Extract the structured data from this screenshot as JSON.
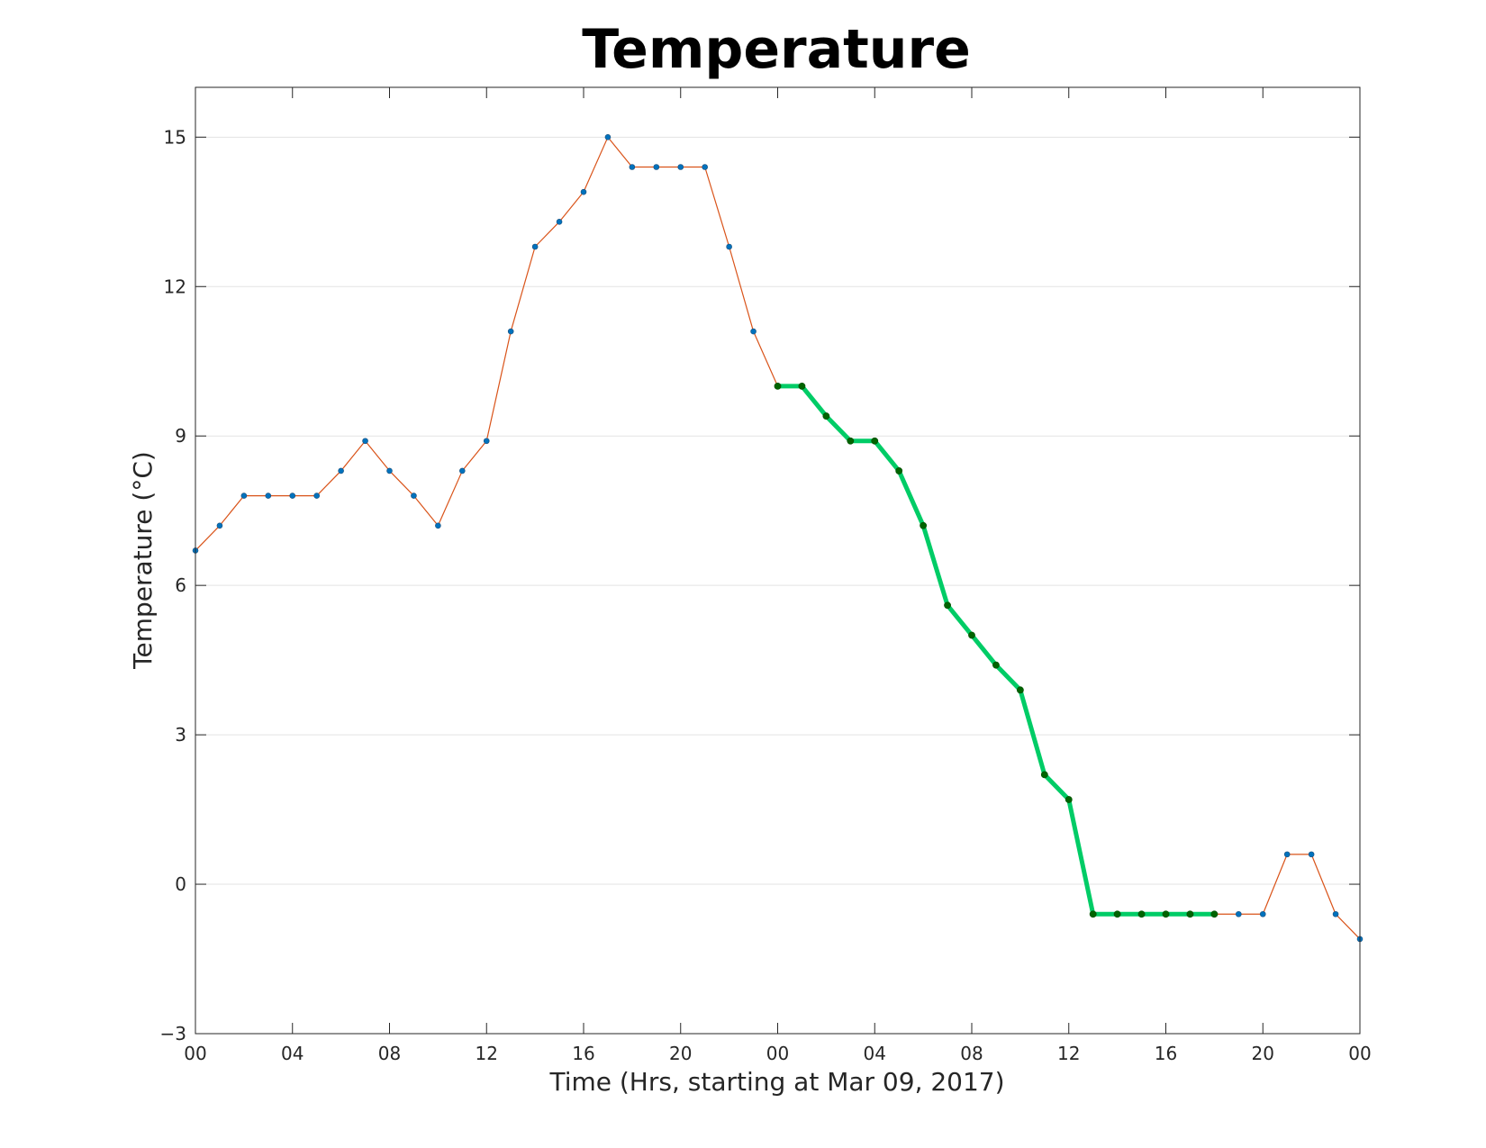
{
  "chart_data": {
    "type": "line",
    "title": "Temperature",
    "xlabel": "Time (Hrs, starting at Mar 09, 2017)",
    "ylabel": "Temperature (°C)",
    "ylim": [
      -3,
      16
    ],
    "xlim": [
      0,
      48
    ],
    "yticks": [
      -3,
      0,
      3,
      6,
      9,
      12,
      15
    ],
    "xticks": [
      0,
      4,
      8,
      12,
      16,
      20,
      24,
      28,
      32,
      36,
      40,
      44,
      48
    ],
    "xtick_labels": [
      "00",
      "04",
      "08",
      "12",
      "16",
      "20",
      "00",
      "04",
      "08",
      "12",
      "16",
      "20",
      "00"
    ],
    "grid": "horizontal",
    "series": [
      {
        "role": "full",
        "color": "#d95319",
        "marker_color": "#0072bd",
        "x": [
          0,
          1,
          2,
          3,
          4,
          5,
          6,
          7,
          8,
          9,
          10,
          11,
          12,
          13,
          14,
          15,
          16,
          17,
          18,
          19,
          20,
          21,
          22,
          23,
          24,
          25,
          26,
          27,
          28,
          29,
          30,
          31,
          32,
          33,
          34,
          35,
          36,
          37,
          38,
          39,
          40,
          41,
          42,
          43,
          44,
          45,
          46,
          47,
          48
        ],
        "y": [
          6.7,
          7.2,
          7.8,
          7.8,
          7.8,
          7.8,
          8.3,
          8.9,
          8.3,
          7.8,
          7.2,
          8.3,
          8.9,
          11.1,
          12.8,
          13.3,
          13.9,
          15.0,
          14.4,
          14.4,
          14.4,
          14.4,
          12.8,
          11.1,
          10.0,
          10.0,
          9.4,
          8.9,
          8.9,
          8.3,
          7.2,
          5.6,
          5.0,
          4.4,
          3.9,
          2.2,
          1.7,
          -0.6,
          -0.6,
          -0.6,
          -0.6,
          -0.6,
          -0.6,
          -0.6,
          -0.6,
          0.6,
          0.6,
          -0.6,
          -1.1
        ]
      },
      {
        "role": "highlight",
        "color": "#00cc66",
        "marker_color": "#006400",
        "x": [
          24,
          25,
          26,
          27,
          28,
          29,
          30,
          31,
          32,
          33,
          34,
          35,
          36,
          37,
          38,
          39,
          40,
          41,
          42
        ],
        "y": [
          10.0,
          10.0,
          9.4,
          8.9,
          8.9,
          8.3,
          7.2,
          5.6,
          5.0,
          4.4,
          3.9,
          2.2,
          1.7,
          -0.6,
          -0.6,
          -0.6,
          -0.6,
          -0.6,
          -0.6
        ]
      }
    ]
  }
}
